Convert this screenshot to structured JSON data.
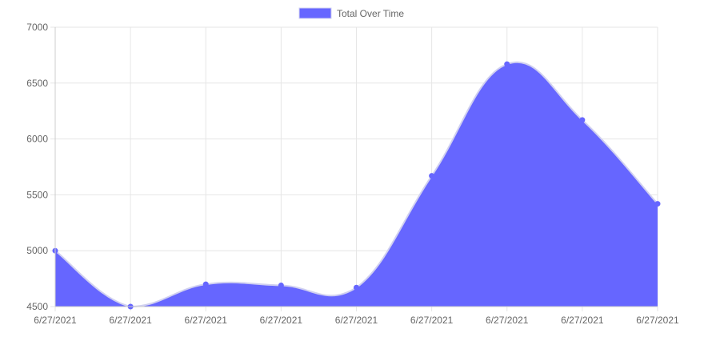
{
  "chart_data": {
    "type": "area",
    "categories": [
      "6/27/2021",
      "6/27/2021",
      "6/27/2021",
      "6/27/2021",
      "6/27/2021",
      "6/27/2021",
      "6/27/2021",
      "6/27/2021",
      "6/27/2021"
    ],
    "series": [
      {
        "name": "Total Over Time",
        "values": [
          5000,
          4500,
          4700,
          4690,
          4670,
          5670,
          6670,
          6170,
          5420
        ],
        "color": "#6666ff",
        "line_color": "#d0d0f0"
      }
    ],
    "ylim": [
      4500,
      7000
    ],
    "yticks": [
      4500,
      5000,
      5500,
      6000,
      6500,
      7000
    ],
    "ytick_labels": [
      "4500",
      "5000",
      "5500",
      "6000",
      "6500",
      "7000"
    ],
    "grid": true,
    "legend_position": "top-center",
    "smooth": true
  }
}
